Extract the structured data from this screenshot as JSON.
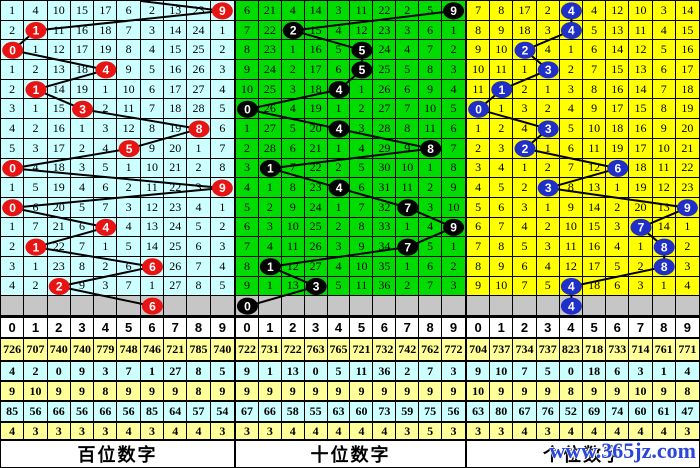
{
  "watermark": "www.365jz.com",
  "digit_header": [
    "0",
    "1",
    "2",
    "3",
    "4",
    "5",
    "6",
    "7",
    "8",
    "9"
  ],
  "panels": [
    {
      "name": "hundreds",
      "label": "百位数字",
      "circle_color": "#e81414",
      "lead_from": [
        140,
        0
      ],
      "hits": [
        9,
        1,
        0,
        4,
        1,
        3,
        8,
        5,
        0,
        9,
        0,
        4,
        1,
        6,
        2
      ],
      "pending_hit": 6,
      "rows": [
        [
          1,
          4,
          10,
          15,
          17,
          6,
          2,
          13,
          23,
          9
        ],
        [
          2,
          1,
          11,
          16,
          18,
          7,
          3,
          14,
          24,
          1
        ],
        [
          0,
          1,
          12,
          17,
          19,
          8,
          4,
          15,
          25,
          2
        ],
        [
          1,
          2,
          13,
          18,
          4,
          9,
          5,
          16,
          26,
          3
        ],
        [
          2,
          1,
          14,
          19,
          1,
          10,
          6,
          17,
          27,
          4
        ],
        [
          3,
          1,
          15,
          3,
          2,
          11,
          7,
          18,
          28,
          5
        ],
        [
          4,
          2,
          16,
          1,
          3,
          12,
          8,
          19,
          8,
          6
        ],
        [
          5,
          3,
          17,
          2,
          4,
          5,
          9,
          20,
          1,
          7
        ],
        [
          0,
          4,
          18,
          3,
          5,
          1,
          10,
          21,
          2,
          8
        ],
        [
          1,
          5,
          19,
          4,
          6,
          2,
          11,
          22,
          3,
          9
        ],
        [
          0,
          6,
          20,
          5,
          7,
          3,
          12,
          23,
          4,
          1
        ],
        [
          1,
          7,
          21,
          6,
          4,
          4,
          13,
          24,
          5,
          2
        ],
        [
          2,
          1,
          22,
          7,
          1,
          5,
          14,
          25,
          6,
          3
        ],
        [
          3,
          1,
          23,
          8,
          2,
          6,
          6,
          26,
          7,
          4
        ],
        [
          4,
          2,
          2,
          9,
          3,
          7,
          1,
          27,
          8,
          5
        ]
      ],
      "stats": [
        [
          726,
          707,
          740,
          740,
          779,
          748,
          746,
          721,
          785,
          740
        ],
        [
          4,
          2,
          0,
          9,
          3,
          7,
          1,
          27,
          8,
          5
        ],
        [
          9,
          10,
          9,
          9,
          8,
          9,
          9,
          9,
          8,
          9
        ],
        [
          85,
          56,
          66,
          56,
          66,
          56,
          85,
          64,
          57,
          54
        ],
        [
          4,
          3,
          3,
          3,
          3,
          4,
          3,
          4,
          4,
          3
        ]
      ]
    },
    {
      "name": "tens",
      "label": "十位数字",
      "circle_color": "#000000",
      "lead_from": null,
      "hits": [
        9,
        2,
        5,
        5,
        4,
        0,
        4,
        8,
        1,
        4,
        7,
        9,
        7,
        1,
        3
      ],
      "pending_hit": 0,
      "rows": [
        [
          6,
          21,
          4,
          14,
          3,
          11,
          22,
          2,
          5,
          9
        ],
        [
          7,
          22,
          2,
          15,
          4,
          12,
          23,
          3,
          6,
          1
        ],
        [
          8,
          23,
          1,
          16,
          5,
          5,
          24,
          4,
          7,
          2
        ],
        [
          9,
          24,
          2,
          17,
          6,
          5,
          25,
          5,
          8,
          3
        ],
        [
          10,
          25,
          3,
          18,
          4,
          1,
          26,
          6,
          9,
          4
        ],
        [
          0,
          26,
          4,
          19,
          1,
          2,
          27,
          7,
          10,
          5
        ],
        [
          1,
          27,
          5,
          20,
          4,
          3,
          28,
          8,
          11,
          6
        ],
        [
          2,
          28,
          6,
          21,
          1,
          4,
          29,
          9,
          8,
          7
        ],
        [
          3,
          1,
          7,
          22,
          2,
          5,
          30,
          10,
          1,
          8
        ],
        [
          4,
          1,
          8,
          23,
          4,
          6,
          31,
          11,
          2,
          9
        ],
        [
          5,
          2,
          9,
          24,
          1,
          7,
          32,
          7,
          3,
          10
        ],
        [
          6,
          3,
          10,
          25,
          2,
          8,
          33,
          1,
          4,
          9
        ],
        [
          7,
          4,
          11,
          26,
          3,
          9,
          34,
          7,
          5,
          1
        ],
        [
          8,
          1,
          12,
          27,
          4,
          10,
          35,
          1,
          6,
          2
        ],
        [
          9,
          1,
          13,
          3,
          5,
          11,
          36,
          2,
          7,
          3
        ]
      ],
      "stats": [
        [
          722,
          731,
          722,
          763,
          765,
          721,
          732,
          742,
          762,
          772
        ],
        [
          9,
          1,
          13,
          0,
          5,
          11,
          36,
          2,
          7,
          3
        ],
        [
          9,
          9,
          9,
          9,
          9,
          9,
          9,
          9,
          9,
          9
        ],
        [
          67,
          66,
          58,
          55,
          63,
          60,
          73,
          59,
          75,
          56
        ],
        [
          3,
          3,
          4,
          4,
          4,
          4,
          4,
          3,
          5,
          3
        ]
      ]
    },
    {
      "name": "units",
      "label": "个位数字",
      "circle_color": "#1f2fc8",
      "lead_from": null,
      "hits": [
        4,
        4,
        2,
        3,
        1,
        0,
        3,
        2,
        6,
        3,
        9,
        7,
        8,
        8,
        4
      ],
      "pending_hit": 4,
      "rows": [
        [
          7,
          8,
          17,
          2,
          4,
          4,
          12,
          10,
          3,
          14
        ],
        [
          8,
          9,
          18,
          3,
          4,
          5,
          13,
          11,
          4,
          15
        ],
        [
          9,
          10,
          2,
          4,
          1,
          6,
          14,
          12,
          5,
          16
        ],
        [
          10,
          11,
          1,
          3,
          2,
          7,
          15,
          13,
          6,
          17
        ],
        [
          11,
          1,
          2,
          1,
          3,
          8,
          16,
          14,
          7,
          18
        ],
        [
          0,
          1,
          3,
          2,
          4,
          9,
          17,
          15,
          8,
          19
        ],
        [
          1,
          2,
          4,
          3,
          5,
          10,
          18,
          16,
          9,
          20
        ],
        [
          2,
          3,
          2,
          1,
          6,
          11,
          19,
          17,
          10,
          21
        ],
        [
          3,
          4,
          1,
          2,
          7,
          12,
          6,
          18,
          11,
          22
        ],
        [
          4,
          5,
          2,
          3,
          8,
          13,
          1,
          19,
          12,
          23
        ],
        [
          5,
          6,
          3,
          1,
          9,
          14,
          2,
          20,
          13,
          9
        ],
        [
          6,
          7,
          4,
          2,
          10,
          15,
          3,
          7,
          14,
          1
        ],
        [
          7,
          8,
          5,
          3,
          11,
          16,
          4,
          1,
          8,
          2
        ],
        [
          8,
          9,
          6,
          4,
          12,
          17,
          5,
          2,
          8,
          3
        ],
        [
          9,
          10,
          7,
          5,
          4,
          18,
          6,
          3,
          1,
          4
        ]
      ],
      "stats": [
        [
          704,
          737,
          734,
          737,
          823,
          718,
          733,
          714,
          761,
          771
        ],
        [
          9,
          10,
          7,
          5,
          0,
          18,
          6,
          3,
          1,
          4
        ],
        [
          10,
          9,
          9,
          9,
          8,
          9,
          9,
          10,
          9,
          8
        ],
        [
          63,
          80,
          67,
          76,
          52,
          69,
          74,
          60,
          61,
          47
        ],
        [
          3,
          3,
          4,
          3,
          4,
          4,
          4,
          4,
          4,
          3
        ]
      ]
    }
  ],
  "chart_data": [
    {
      "type": "line",
      "title": "百位数字",
      "x": [
        1,
        2,
        3,
        4,
        5,
        6,
        7,
        8,
        9,
        10,
        11,
        12,
        13,
        14,
        15,
        16
      ],
      "values": [
        9,
        1,
        0,
        4,
        1,
        3,
        8,
        5,
        0,
        9,
        0,
        4,
        1,
        6,
        2,
        6
      ],
      "ylim": [
        0,
        9
      ],
      "note": "winning hundreds digit per draw; last value is pending gray row"
    },
    {
      "type": "line",
      "title": "十位数字",
      "x": [
        1,
        2,
        3,
        4,
        5,
        6,
        7,
        8,
        9,
        10,
        11,
        12,
        13,
        14,
        15,
        16
      ],
      "values": [
        9,
        2,
        5,
        5,
        4,
        0,
        4,
        8,
        1,
        4,
        7,
        9,
        7,
        1,
        3,
        0
      ],
      "ylim": [
        0,
        9
      ],
      "note": "winning tens digit per draw; last value is pending gray row"
    },
    {
      "type": "line",
      "title": "个位数字",
      "x": [
        1,
        2,
        3,
        4,
        5,
        6,
        7,
        8,
        9,
        10,
        11,
        12,
        13,
        14,
        15,
        16
      ],
      "values": [
        4,
        4,
        2,
        3,
        1,
        0,
        3,
        2,
        6,
        3,
        9,
        7,
        8,
        8,
        4,
        4
      ],
      "ylim": [
        0,
        9
      ],
      "note": "winning units digit per draw; last value is pending gray row"
    }
  ]
}
